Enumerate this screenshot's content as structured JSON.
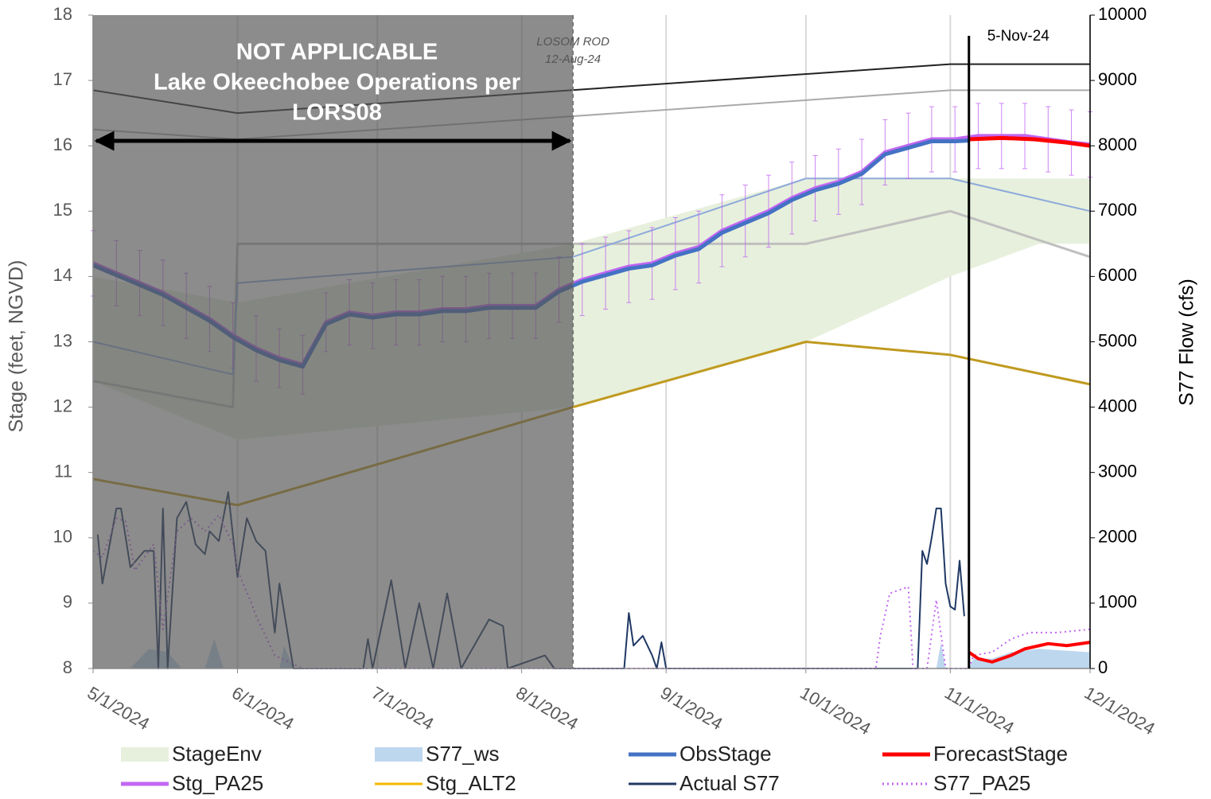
{
  "chart_data": {
    "type": "line",
    "y_label": "Stage (feet, NGVD)",
    "y2_label": "S77 Flow (cfs)",
    "xlim": [
      "2024-05-01",
      "2024-12-01"
    ],
    "xticks": [
      {
        "value": "2024-05-01",
        "label": "5/1/2024"
      },
      {
        "value": "2024-06-01",
        "label": "6/1/2024"
      },
      {
        "value": "2024-07-01",
        "label": "7/1/2024"
      },
      {
        "value": "2024-08-01",
        "label": "8/1/2024"
      },
      {
        "value": "2024-09-01",
        "label": "9/1/2024"
      },
      {
        "value": "2024-10-01",
        "label": "10/1/2024"
      },
      {
        "value": "2024-11-01",
        "label": "11/1/2024"
      },
      {
        "value": "2024-12-01",
        "label": "12/1/2024"
      }
    ],
    "ylim": [
      8,
      18
    ],
    "yticks": [
      8,
      9,
      10,
      11,
      12,
      13,
      14,
      15,
      16,
      17,
      18
    ],
    "y2lim": [
      0,
      10000
    ],
    "y2ticks": [
      0,
      1000,
      2000,
      3000,
      4000,
      5000,
      6000,
      7000,
      8000,
      9000,
      10000
    ],
    "grid": "x",
    "shade": [
      "2024-05-01",
      "2024-08-12"
    ],
    "vline": "2024-11-05",
    "annotations": {
      "not_applicable": [
        "NOT APPLICABLE",
        "Lake Okeechobee Operations per",
        "LORS08"
      ],
      "losom": [
        "LOSOM ROD",
        "12-Aug-24"
      ],
      "vline_label": "5-Nov-24"
    },
    "series": [
      {
        "name": "StageEnv",
        "kind": "band",
        "color": "#e7f0dc",
        "x": [
          "2024-05-01",
          "2024-06-01",
          "2024-08-12",
          "2024-10-01",
          "2024-11-01",
          "2024-11-20",
          "2024-12-01"
        ],
        "lower": [
          12.4,
          11.5,
          12.0,
          13.0,
          14.0,
          14.5,
          14.5
        ],
        "upper": [
          14.0,
          13.6,
          14.5,
          15.5,
          15.5,
          15.5,
          15.5
        ]
      },
      {
        "name": "S77_ws",
        "kind": "area",
        "axis": "y2",
        "color": "#bdd7ee",
        "x": [
          "2024-05-01",
          "2024-05-09",
          "2024-05-13",
          "2024-05-17",
          "2024-05-20",
          "2024-05-25",
          "2024-05-27",
          "2024-05-29",
          "2024-06-10",
          "2024-06-11",
          "2024-06-13",
          "2024-10-29",
          "2024-10-30",
          "2024-10-31",
          "2024-11-05",
          "2024-11-06",
          "2024-11-10",
          "2024-11-14",
          "2024-11-20",
          "2024-12-01"
        ],
        "values": [
          0,
          0,
          300,
          250,
          0,
          0,
          450,
          0,
          0,
          350,
          0,
          0,
          400,
          0,
          0,
          150,
          150,
          250,
          300,
          250
        ]
      },
      {
        "name": "ObsStage",
        "kind": "line",
        "color": "#4472c4",
        "width": 5,
        "x": [
          "2024-05-01",
          "2024-05-06",
          "2024-05-11",
          "2024-05-16",
          "2024-05-21",
          "2024-05-26",
          "2024-05-31",
          "2024-06-05",
          "2024-06-10",
          "2024-06-15",
          "2024-06-20",
          "2024-06-25",
          "2024-06-30",
          "2024-07-05",
          "2024-07-10",
          "2024-07-15",
          "2024-07-20",
          "2024-07-25",
          "2024-07-30",
          "2024-08-04",
          "2024-08-09",
          "2024-08-14",
          "2024-08-19",
          "2024-08-24",
          "2024-08-29",
          "2024-09-03",
          "2024-09-08",
          "2024-09-13",
          "2024-09-18",
          "2024-09-23",
          "2024-09-28",
          "2024-10-03",
          "2024-10-08",
          "2024-10-13",
          "2024-10-18",
          "2024-10-23",
          "2024-10-28",
          "2024-11-02",
          "2024-11-05"
        ],
        "values": [
          14.17,
          14.02,
          13.87,
          13.72,
          13.52,
          13.32,
          13.07,
          12.87,
          12.72,
          12.62,
          13.27,
          13.42,
          13.37,
          13.42,
          13.42,
          13.47,
          13.47,
          13.52,
          13.52,
          13.52,
          13.77,
          13.92,
          14.02,
          14.12,
          14.17,
          14.32,
          14.42,
          14.67,
          14.82,
          14.97,
          15.17,
          15.32,
          15.42,
          15.57,
          15.87,
          15.97,
          16.07,
          16.07,
          16.08
        ]
      },
      {
        "name": "ForecastStage",
        "kind": "line",
        "color": "#ff0000",
        "width": 5,
        "x": [
          "2024-11-05",
          "2024-11-12",
          "2024-11-19",
          "2024-11-26",
          "2024-12-01"
        ],
        "values": [
          16.1,
          16.12,
          16.1,
          16.05,
          16.0
        ]
      },
      {
        "name": "Stg_PA25",
        "kind": "line",
        "color": "#c266f2",
        "width": 5,
        "x": [
          "2024-05-01",
          "2024-05-06",
          "2024-05-11",
          "2024-05-16",
          "2024-05-21",
          "2024-05-26",
          "2024-05-31",
          "2024-06-05",
          "2024-06-10",
          "2024-06-15",
          "2024-06-20",
          "2024-06-25",
          "2024-06-30",
          "2024-07-05",
          "2024-07-10",
          "2024-07-15",
          "2024-07-20",
          "2024-07-25",
          "2024-07-30",
          "2024-08-04",
          "2024-08-09",
          "2024-08-14",
          "2024-08-19",
          "2024-08-24",
          "2024-08-29",
          "2024-09-03",
          "2024-09-08",
          "2024-09-13",
          "2024-09-18",
          "2024-09-23",
          "2024-09-28",
          "2024-10-03",
          "2024-10-08",
          "2024-10-13",
          "2024-10-18",
          "2024-10-23",
          "2024-10-28",
          "2024-11-02",
          "2024-11-07",
          "2024-11-12",
          "2024-11-17",
          "2024-11-22",
          "2024-11-27",
          "2024-12-01"
        ],
        "values": [
          14.2,
          14.05,
          13.9,
          13.75,
          13.55,
          13.35,
          13.1,
          12.9,
          12.75,
          12.65,
          13.3,
          13.45,
          13.4,
          13.45,
          13.45,
          13.5,
          13.5,
          13.55,
          13.55,
          13.55,
          13.8,
          13.95,
          14.05,
          14.15,
          14.2,
          14.35,
          14.45,
          14.7,
          14.85,
          15.0,
          15.2,
          15.35,
          15.45,
          15.6,
          15.9,
          16.0,
          16.1,
          16.1,
          16.15,
          16.15,
          16.15,
          16.1,
          16.05,
          16.02
        ],
        "errors": [
          0.5,
          0.5,
          0.5,
          0.5,
          0.5,
          0.5,
          0.5,
          0.5,
          0.45,
          0.45,
          0.45,
          0.5,
          0.5,
          0.5,
          0.5,
          0.5,
          0.5,
          0.5,
          0.5,
          0.5,
          0.5,
          0.55,
          0.55,
          0.55,
          0.55,
          0.55,
          0.55,
          0.55,
          0.55,
          0.55,
          0.55,
          0.5,
          0.5,
          0.5,
          0.5,
          0.5,
          0.5,
          0.5,
          0.5,
          0.5,
          0.5,
          0.5,
          0.5,
          0.5
        ]
      },
      {
        "name": "Stg_ALT2",
        "kind": "line",
        "color": "#c09a20",
        "width": 3,
        "legend_color": "#f5b800",
        "x": [
          "2024-05-01",
          "2024-06-01",
          "2024-08-12",
          "2024-10-01",
          "2024-11-01",
          "2024-12-01"
        ],
        "values": [
          10.9,
          10.5,
          12.0,
          13.0,
          12.8,
          12.35
        ]
      },
      {
        "name": "Actual S77",
        "kind": "line",
        "axis": "y2",
        "color": "#1f3864",
        "width": 2,
        "x": [
          "2024-05-02",
          "2024-05-03",
          "2024-05-06",
          "2024-05-07",
          "2024-05-09",
          "2024-05-12",
          "2024-05-14",
          "2024-05-15",
          "2024-05-16",
          "2024-05-17",
          "2024-05-19",
          "2024-05-21",
          "2024-05-23",
          "2024-05-25",
          "2024-05-26",
          "2024-05-28",
          "2024-05-30",
          "2024-06-01",
          "2024-06-03",
          "2024-06-05",
          "2024-06-07",
          "2024-06-09",
          "2024-06-10",
          "2024-06-13",
          "2024-06-28",
          "2024-06-29",
          "2024-06-30",
          "2024-07-04",
          "2024-07-07",
          "2024-07-10",
          "2024-07-13",
          "2024-07-16",
          "2024-07-19",
          "2024-07-25",
          "2024-07-28",
          "2024-07-29",
          "2024-08-06",
          "2024-08-08",
          "2024-08-23",
          "2024-08-24",
          "2024-08-25",
          "2024-08-27",
          "2024-08-29",
          "2024-08-30",
          "2024-08-31",
          "2024-09-01",
          "2024-10-25",
          "2024-10-26",
          "2024-10-27",
          "2024-10-28",
          "2024-10-29",
          "2024-10-30",
          "2024-10-31",
          "2024-11-01",
          "2024-11-02",
          "2024-11-03",
          "2024-11-04"
        ],
        "values": [
          2050,
          1300,
          2450,
          2450,
          1550,
          1800,
          1800,
          0,
          2450,
          0,
          2300,
          2550,
          1900,
          1750,
          2100,
          1950,
          2700,
          1400,
          2300,
          1950,
          1800,
          550,
          1300,
          0,
          0,
          450,
          0,
          1350,
          0,
          1000,
          0,
          1150,
          0,
          750,
          650,
          0,
          200,
          0,
          0,
          850,
          350,
          500,
          200,
          0,
          400,
          0,
          0,
          1800,
          1600,
          2000,
          2450,
          2450,
          1300,
          950,
          900,
          1650,
          800
        ]
      },
      {
        "name": "S77_PA25",
        "kind": "line",
        "axis": "y2",
        "color": "#c266f2",
        "width": 2,
        "dash": "2 4",
        "x": [
          "2024-05-01",
          "2024-05-03",
          "2024-05-06",
          "2024-05-08",
          "2024-05-10",
          "2024-05-14",
          "2024-05-16",
          "2024-05-19",
          "2024-05-22",
          "2024-05-25",
          "2024-05-28",
          "2024-05-31",
          "2024-06-01",
          "2024-06-04",
          "2024-06-05",
          "2024-06-07",
          "2024-06-09",
          "2024-06-15",
          "2024-10-16",
          "2024-10-17",
          "2024-10-19",
          "2024-10-23",
          "2024-10-24",
          "2024-10-27",
          "2024-10-29",
          "2024-10-31",
          "2024-11-05",
          "2024-11-06",
          "2024-11-10",
          "2024-11-14",
          "2024-11-18",
          "2024-11-24",
          "2024-12-01"
        ],
        "values": [
          1800,
          1700,
          2300,
          2250,
          1500,
          1900,
          600,
          2100,
          2300,
          2100,
          2350,
          1900,
          1500,
          1000,
          800,
          500,
          200,
          0,
          0,
          500,
          1150,
          1250,
          0,
          0,
          1050,
          0,
          0,
          200,
          250,
          450,
          550,
          550,
          600
        ]
      },
      {
        "kind": "line",
        "color": "#222222",
        "width": 2,
        "x": [
          "2024-05-01",
          "2024-06-01",
          "2024-11-01",
          "2024-12-01"
        ],
        "values": [
          16.85,
          16.5,
          17.25,
          17.25
        ]
      },
      {
        "kind": "line",
        "color": "#aaaaaa",
        "width": 2,
        "x": [
          "2024-05-01",
          "2024-06-01",
          "2024-11-01",
          "2024-12-01"
        ],
        "values": [
          16.25,
          16.1,
          16.85,
          16.85
        ]
      },
      {
        "kind": "line",
        "color": "#bfbfbf",
        "width": 3,
        "x": [
          "2024-05-01",
          "2024-05-31",
          "2024-06-01",
          "2024-10-01",
          "2024-11-01",
          "2024-12-01"
        ],
        "values": [
          12.4,
          12.0,
          14.5,
          14.5,
          15.0,
          14.3
        ]
      },
      {
        "kind": "line",
        "color": "#8eaadb",
        "width": 2,
        "x": [
          "2024-05-01",
          "2024-05-31",
          "2024-06-01",
          "2024-08-12",
          "2024-10-01",
          "2024-11-01",
          "2024-12-01"
        ],
        "values": [
          13.0,
          12.5,
          13.9,
          14.3,
          15.5,
          15.5,
          15.0
        ]
      },
      {
        "kind": "line",
        "axis": "y2",
        "color": "#ff0000",
        "width": 4,
        "x": [
          "2024-11-05",
          "2024-11-07",
          "2024-11-10",
          "2024-11-14",
          "2024-11-17",
          "2024-11-22",
          "2024-11-26",
          "2024-12-01"
        ],
        "values": [
          250,
          150,
          100,
          200,
          300,
          380,
          350,
          400
        ]
      }
    ]
  }
}
